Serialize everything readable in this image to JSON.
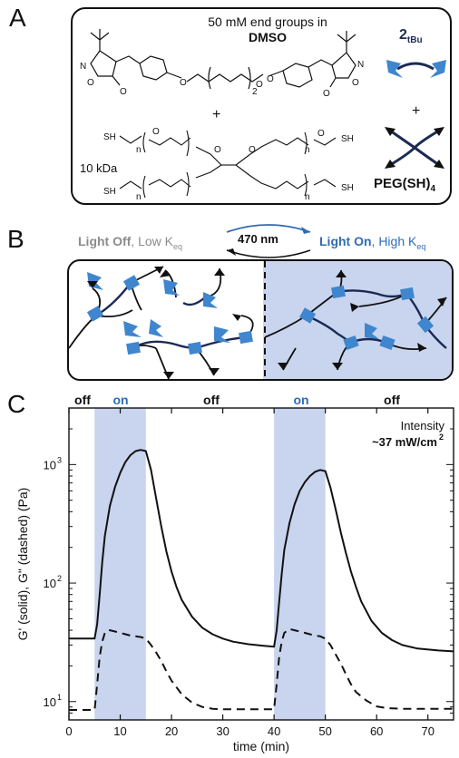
{
  "panelA": {
    "letter": "A",
    "title_line1": "50 mM end groups in",
    "title_line2": "DMSO",
    "mw_label": "10 kDa",
    "plus1": "+",
    "plus2": "+",
    "crosslinker_label": "2",
    "crosslinker_sub": "tBu",
    "peg_label": "PEG(SH)",
    "peg_sub": "4",
    "atoms": {
      "N": "N",
      "O": "O",
      "SH": "SH",
      "n": "n",
      "sub2": "2"
    }
  },
  "panelB": {
    "letter": "B",
    "wavelength": "470 nm",
    "off_bold": "Light Off",
    "off_rest": ", Low K",
    "off_sub": "eq",
    "on_bold": "Light On",
    "on_rest": ", High K",
    "on_sub": "eq",
    "colors": {
      "light_region": "#c9d5ee",
      "crosslinker": "#3f86cf",
      "strand": "#1b2a55"
    }
  },
  "panelC": {
    "letter": "C",
    "state_labels": [
      "off",
      "on",
      "off",
      "on",
      "off"
    ],
    "intensity_label": "Intensity",
    "intensity_value": "~37 mW/cm",
    "intensity_sup": "2"
  },
  "chart_data": {
    "type": "line",
    "xlabel": "time (min)",
    "ylabel": "G' (solid), G\" (dashed) (Pa)",
    "xlim": [
      0,
      75
    ],
    "ylim": [
      7,
      3000
    ],
    "yscale": "log",
    "xticks": [
      0,
      10,
      20,
      30,
      40,
      50,
      60,
      70
    ],
    "yticks": [
      {
        "value": 10,
        "base": "10",
        "exp": "1"
      },
      {
        "value": 100,
        "base": "10",
        "exp": "2"
      },
      {
        "value": 1000,
        "base": "10",
        "exp": "3"
      }
    ],
    "light_on_intervals": [
      [
        5,
        15
      ],
      [
        40,
        50
      ]
    ],
    "shade_color": "#c9d5ee",
    "series": [
      {
        "style": "solid",
        "x": [
          0,
          5,
          5.5,
          6,
          6.5,
          7,
          8,
          9,
          10,
          11,
          12,
          13,
          14,
          15,
          16,
          17,
          18,
          19,
          20,
          21,
          22,
          24,
          26,
          28,
          30,
          32,
          35,
          38,
          40,
          40.5,
          41,
          41.5,
          42,
          43,
          44,
          45,
          46,
          47,
          48,
          49,
          50,
          51,
          52,
          53,
          54,
          55,
          56,
          57,
          59,
          61,
          63,
          65,
          68,
          72,
          75
        ],
        "y": [
          34,
          34,
          45,
          80,
          150,
          250,
          450,
          650,
          850,
          1050,
          1200,
          1300,
          1330,
          1300,
          900,
          520,
          300,
          185,
          125,
          92,
          72,
          52,
          42,
          37,
          34,
          32,
          30.5,
          29.5,
          29,
          40,
          70,
          120,
          190,
          320,
          460,
          600,
          710,
          800,
          870,
          900,
          880,
          640,
          420,
          270,
          180,
          125,
          92,
          70,
          48,
          38,
          33,
          30,
          28,
          27,
          26.5
        ]
      },
      {
        "style": "dashed",
        "x": [
          0,
          5,
          5.5,
          6,
          6.5,
          7,
          7.5,
          8,
          9,
          10,
          11,
          12,
          13,
          14,
          15,
          16,
          17,
          18,
          19,
          20,
          22,
          24,
          26,
          28,
          30,
          35,
          40,
          40.5,
          41,
          41.5,
          42,
          43,
          44,
          45,
          46,
          47,
          48,
          49,
          50,
          51,
          52,
          53,
          54,
          55,
          56,
          58,
          60,
          62,
          65,
          70,
          75
        ],
        "y": [
          8.5,
          8.5,
          14,
          24,
          32,
          38,
          40,
          40,
          39,
          38,
          37,
          36,
          35.5,
          35,
          34,
          30,
          26,
          22,
          18,
          15,
          11.5,
          9.8,
          9.0,
          8.7,
          8.6,
          8.6,
          8.6,
          14,
          24,
          32,
          38,
          41,
          40,
          39,
          38,
          37,
          36,
          35.5,
          34,
          30,
          25,
          21,
          17,
          14,
          12,
          10.2,
          9.1,
          8.8,
          8.7,
          8.7,
          8.7
        ]
      }
    ]
  }
}
